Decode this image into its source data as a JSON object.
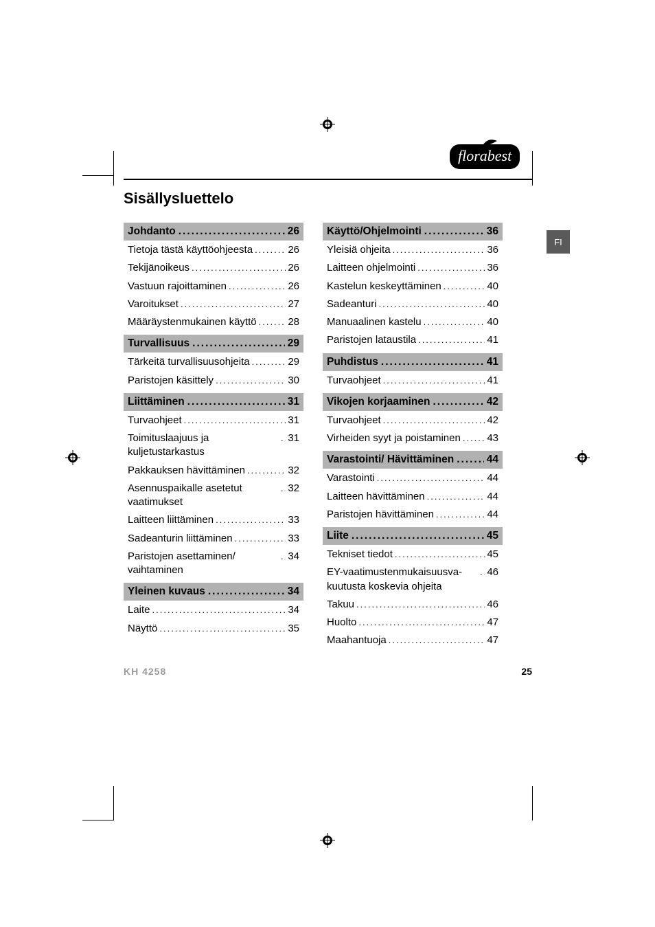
{
  "brand": "florabest",
  "title": "Sisällysluettelo",
  "lang_tab": "FI",
  "footer": {
    "model": "KH 4258",
    "page": "25"
  },
  "dots": "....................................",
  "left": [
    {
      "type": "head",
      "label": "Johdanto",
      "page": "26"
    },
    {
      "type": "row",
      "label": "Tietoja tästä käyttöohjeesta",
      "page": "26"
    },
    {
      "type": "row",
      "label": "Tekijänoikeus",
      "page": "26"
    },
    {
      "type": "row",
      "label": "Vastuun rajoittaminen",
      "page": "26"
    },
    {
      "type": "row",
      "label": "Varoitukset",
      "page": "27"
    },
    {
      "type": "row",
      "label": "Määräystenmukainen käyttö",
      "page": "28"
    },
    {
      "type": "head",
      "label": "Turvallisuus",
      "page": "29"
    },
    {
      "type": "row",
      "label": "Tärkeitä turvallisuusohjeita",
      "page": "29"
    },
    {
      "type": "row",
      "label": "Paristojen käsittely",
      "page": "30"
    },
    {
      "type": "head",
      "label": "Liittäminen",
      "page": "31"
    },
    {
      "type": "row",
      "label": "Turvaohjeet",
      "page": "31"
    },
    {
      "type": "row",
      "label": "Toimituslaajuus ja kuljetustarkastus",
      "page": "31"
    },
    {
      "type": "row",
      "label": "Pakkauksen hävittäminen",
      "page": "32"
    },
    {
      "type": "row",
      "label": "Asennuspaikalle asetetut vaatimukset",
      "page": "32"
    },
    {
      "type": "row",
      "label": "Laitteen liittäminen",
      "page": "33"
    },
    {
      "type": "row",
      "label": "Sadeanturin liittäminen",
      "page": "33"
    },
    {
      "type": "row",
      "label": "Paristojen asettaminen/ vaihtaminen",
      "page": "34"
    },
    {
      "type": "head",
      "label": "Yleinen kuvaus",
      "page": "34"
    },
    {
      "type": "row",
      "label": "Laite",
      "page": "34"
    },
    {
      "type": "row",
      "label": "Näyttö",
      "page": "35"
    }
  ],
  "right": [
    {
      "type": "head",
      "label": "Käyttö/Ohjelmointi",
      "page": "36"
    },
    {
      "type": "row",
      "label": "Yleisiä ohjeita",
      "page": "36"
    },
    {
      "type": "row",
      "label": "Laitteen ohjelmointi",
      "page": "36"
    },
    {
      "type": "row",
      "label": "Kastelun keskeyttäminen",
      "page": "40"
    },
    {
      "type": "row",
      "label": "Sadeanturi",
      "page": "40"
    },
    {
      "type": "row",
      "label": "Manuaalinen kastelu",
      "page": "40"
    },
    {
      "type": "row",
      "label": "Paristojen lataustila",
      "page": "41"
    },
    {
      "type": "head",
      "label": "Puhdistus",
      "page": "41"
    },
    {
      "type": "row",
      "label": "Turvaohjeet",
      "page": "41"
    },
    {
      "type": "head",
      "label": "Vikojen korjaaminen",
      "page": "42"
    },
    {
      "type": "row",
      "label": "Turvaohjeet",
      "page": "42"
    },
    {
      "type": "row",
      "label": "Virheiden syyt ja poistaminen",
      "page": "43"
    },
    {
      "type": "head",
      "label": "Varastointi/ Hävittäminen",
      "page": "44"
    },
    {
      "type": "row",
      "label": "Varastointi",
      "page": "44"
    },
    {
      "type": "row",
      "label": "Laitteen hävittäminen",
      "page": "44"
    },
    {
      "type": "row",
      "label": "Paristojen hävittäminen",
      "page": "44"
    },
    {
      "type": "head",
      "label": "Liite",
      "page": "45"
    },
    {
      "type": "row",
      "label": "Tekniset tiedot",
      "page": "45"
    },
    {
      "type": "row",
      "label": "EY-vaatimustenmukaisuusva-kuutusta koskevia ohjeita",
      "page": "46"
    },
    {
      "type": "row",
      "label": "Takuu",
      "page": "46"
    },
    {
      "type": "row",
      "label": "Huolto",
      "page": "47"
    },
    {
      "type": "row",
      "label": "Maahantuoja",
      "page": "47"
    }
  ]
}
